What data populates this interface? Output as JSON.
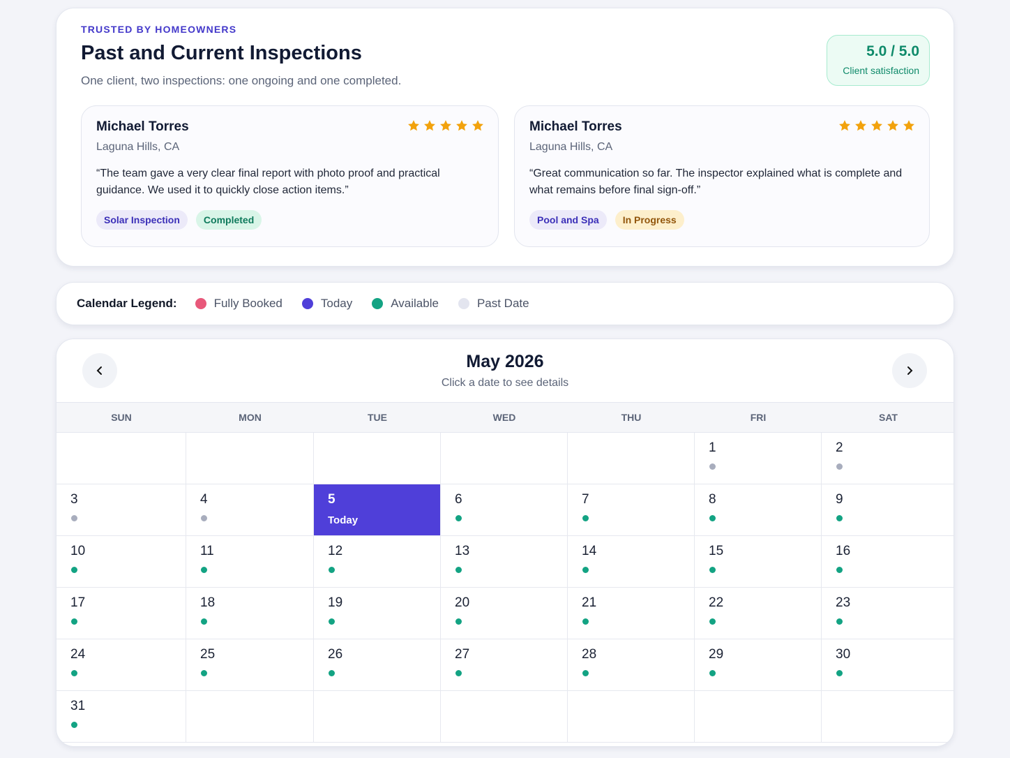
{
  "header": {
    "eyebrow": "TRUSTED BY HOMEOWNERS",
    "title": "Past and Current Inspections",
    "subtitle": "One client, two inspections: one ongoing and one completed.",
    "rating": "5.0 / 5.0",
    "rating_label": "Client satisfaction"
  },
  "reviews": [
    {
      "name": "Michael Torres",
      "location": "Laguna Hills, CA",
      "stars": 5,
      "quote": "“The team gave a very clear final report with photo proof and practical guidance. We used it to quickly close action items.”",
      "tags": [
        {
          "label": "Solar Inspection",
          "color": "#3b2fb8",
          "background": "#eceaf9"
        },
        {
          "label": "Completed",
          "color": "#0f7a5c",
          "background": "#d9f5e8"
        }
      ]
    },
    {
      "name": "Michael Torres",
      "location": "Laguna Hills, CA",
      "stars": 5,
      "quote": "“Great communication so far. The inspector explained what is complete and what remains before final sign-off.”",
      "tags": [
        {
          "label": "Pool and Spa",
          "color": "#3b2fb8",
          "background": "#eceaf9"
        },
        {
          "label": "In Progress",
          "color": "#92560c",
          "background": "#fdefcc"
        }
      ]
    }
  ],
  "legend": {
    "title": "Calendar Legend:",
    "items": [
      {
        "label": "Fully Booked",
        "color": "#e8587a"
      },
      {
        "label": "Today",
        "color": "#4f3fd9"
      },
      {
        "label": "Available",
        "color": "#13a383"
      },
      {
        "label": "Past Date",
        "color": "#e3e5ef"
      }
    ]
  },
  "calendar": {
    "month": "May 2026",
    "hint": "Click a date to see details",
    "weekdays": [
      "SUN",
      "MON",
      "TUE",
      "WED",
      "THU",
      "FRI",
      "SAT"
    ],
    "weeks": [
      [
        null,
        null,
        null,
        null,
        null,
        {
          "day": 1,
          "dot": "#a8adbd"
        },
        {
          "day": 2,
          "dot": "#a8adbd"
        }
      ],
      [
        {
          "day": 3,
          "dot": "#a8adbd"
        },
        {
          "day": 4,
          "dot": "#a8adbd"
        },
        {
          "day": 5,
          "today": true,
          "label": "Today"
        },
        {
          "day": 6,
          "dot": "#13a383"
        },
        {
          "day": 7,
          "dot": "#13a383"
        },
        {
          "day": 8,
          "dot": "#13a383"
        },
        {
          "day": 9,
          "dot": "#13a383"
        }
      ],
      [
        {
          "day": 10,
          "dot": "#13a383"
        },
        {
          "day": 11,
          "dot": "#13a383"
        },
        {
          "day": 12,
          "dot": "#13a383"
        },
        {
          "day": 13,
          "dot": "#13a383"
        },
        {
          "day": 14,
          "dot": "#13a383"
        },
        {
          "day": 15,
          "dot": "#13a383"
        },
        {
          "day": 16,
          "dot": "#13a383"
        }
      ],
      [
        {
          "day": 17,
          "dot": "#13a383"
        },
        {
          "day": 18,
          "dot": "#13a383"
        },
        {
          "day": 19,
          "dot": "#13a383"
        },
        {
          "day": 20,
          "dot": "#13a383"
        },
        {
          "day": 21,
          "dot": "#13a383"
        },
        {
          "day": 22,
          "dot": "#13a383"
        },
        {
          "day": 23,
          "dot": "#13a383"
        }
      ],
      [
        {
          "day": 24,
          "dot": "#13a383"
        },
        {
          "day": 25,
          "dot": "#13a383"
        },
        {
          "day": 26,
          "dot": "#13a383"
        },
        {
          "day": 27,
          "dot": "#13a383"
        },
        {
          "day": 28,
          "dot": "#13a383"
        },
        {
          "day": 29,
          "dot": "#13a383"
        },
        {
          "day": 30,
          "dot": "#13a383"
        }
      ],
      [
        {
          "day": 31,
          "dot": "#13a383"
        },
        null,
        null,
        null,
        null,
        null,
        null
      ]
    ]
  }
}
